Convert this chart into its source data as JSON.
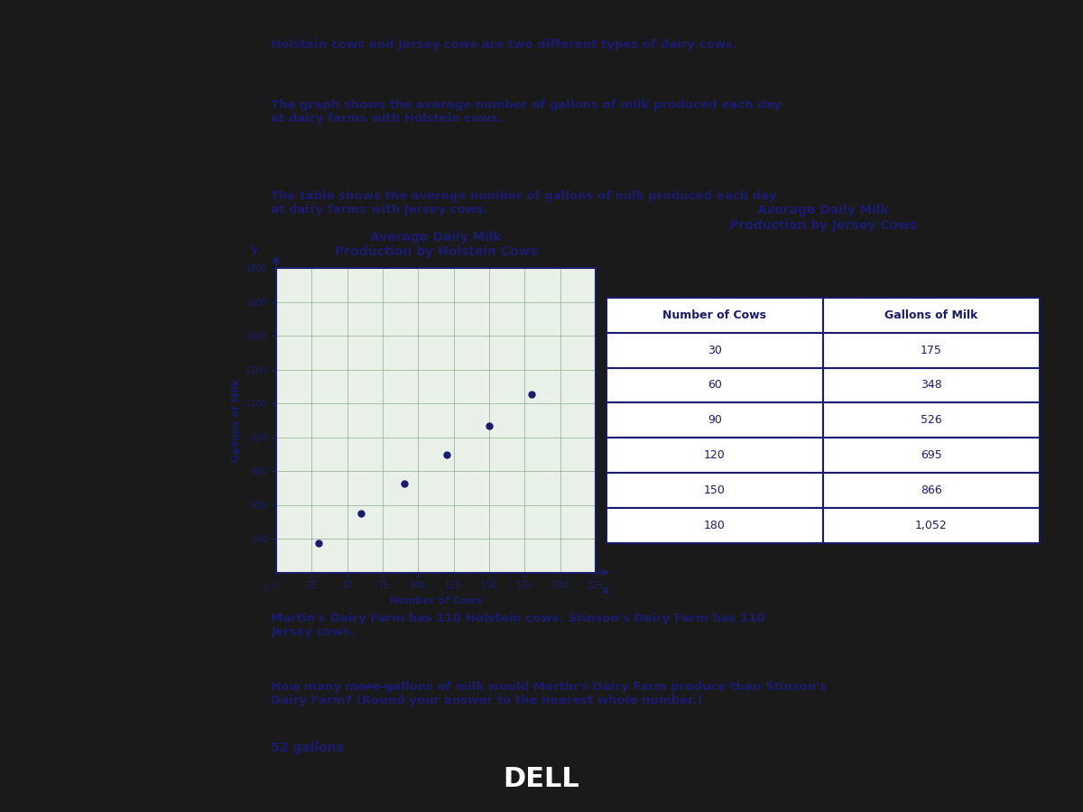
{
  "intro_line1": "Holstein cows and Jersey cows are two different types of dairy cows.",
  "intro_line2": "The graph shows the average number of gallons of milk produced each day\nat dairy farms with Holstein cows.",
  "intro_line3": "The table shows the average number of gallons of milk produced each day\nat dairy farms with Jersey cows.",
  "graph_title": "Average Daily Milk\nProduction by Holstein Cows",
  "table_title": "Average Daily Milk\nProduction by Jersey Cows",
  "holstein_x": [
    30,
    60,
    90,
    120,
    150,
    180
  ],
  "holstein_y": [
    175,
    348,
    526,
    695,
    866,
    1052
  ],
  "jersey_cows": [
    30,
    60,
    90,
    120,
    150,
    180
  ],
  "jersey_gallons": [
    175,
    348,
    526,
    695,
    866,
    1052
  ],
  "graph_xlabel": "Number of Cows",
  "graph_ylabel": "Gallons of Milk",
  "graph_xlim": [
    0,
    225
  ],
  "graph_ylim": [
    0,
    1800
  ],
  "graph_xticks": [
    0,
    25,
    50,
    75,
    100,
    125,
    150,
    175,
    200,
    225
  ],
  "graph_yticks": [
    200,
    400,
    600,
    800,
    1000,
    1200,
    1400,
    1600,
    1800
  ],
  "bottom_text1": "Martin's Dairy Farm has 110 Holstein cows. Stinson's Dairy Farm has 110\nJersey cows.",
  "bottom_text2": "How many more gallons of milk would Martin's Dairy Farm produce than Stinson's\nDairy Farm? (Round your answer to the nearest whole number.)",
  "answer_text": "52 gallons",
  "bg_color": "#c8c8b0",
  "screen_bg": "#1a1a1a",
  "text_color": "#1a1a6e",
  "graph_bg": "#e8f0e8",
  "table_col1_header": "Number of Cows",
  "table_col2_header": "Gallons of Milk",
  "dell_color": "#ffffff",
  "point_color": "#1a1a6e"
}
